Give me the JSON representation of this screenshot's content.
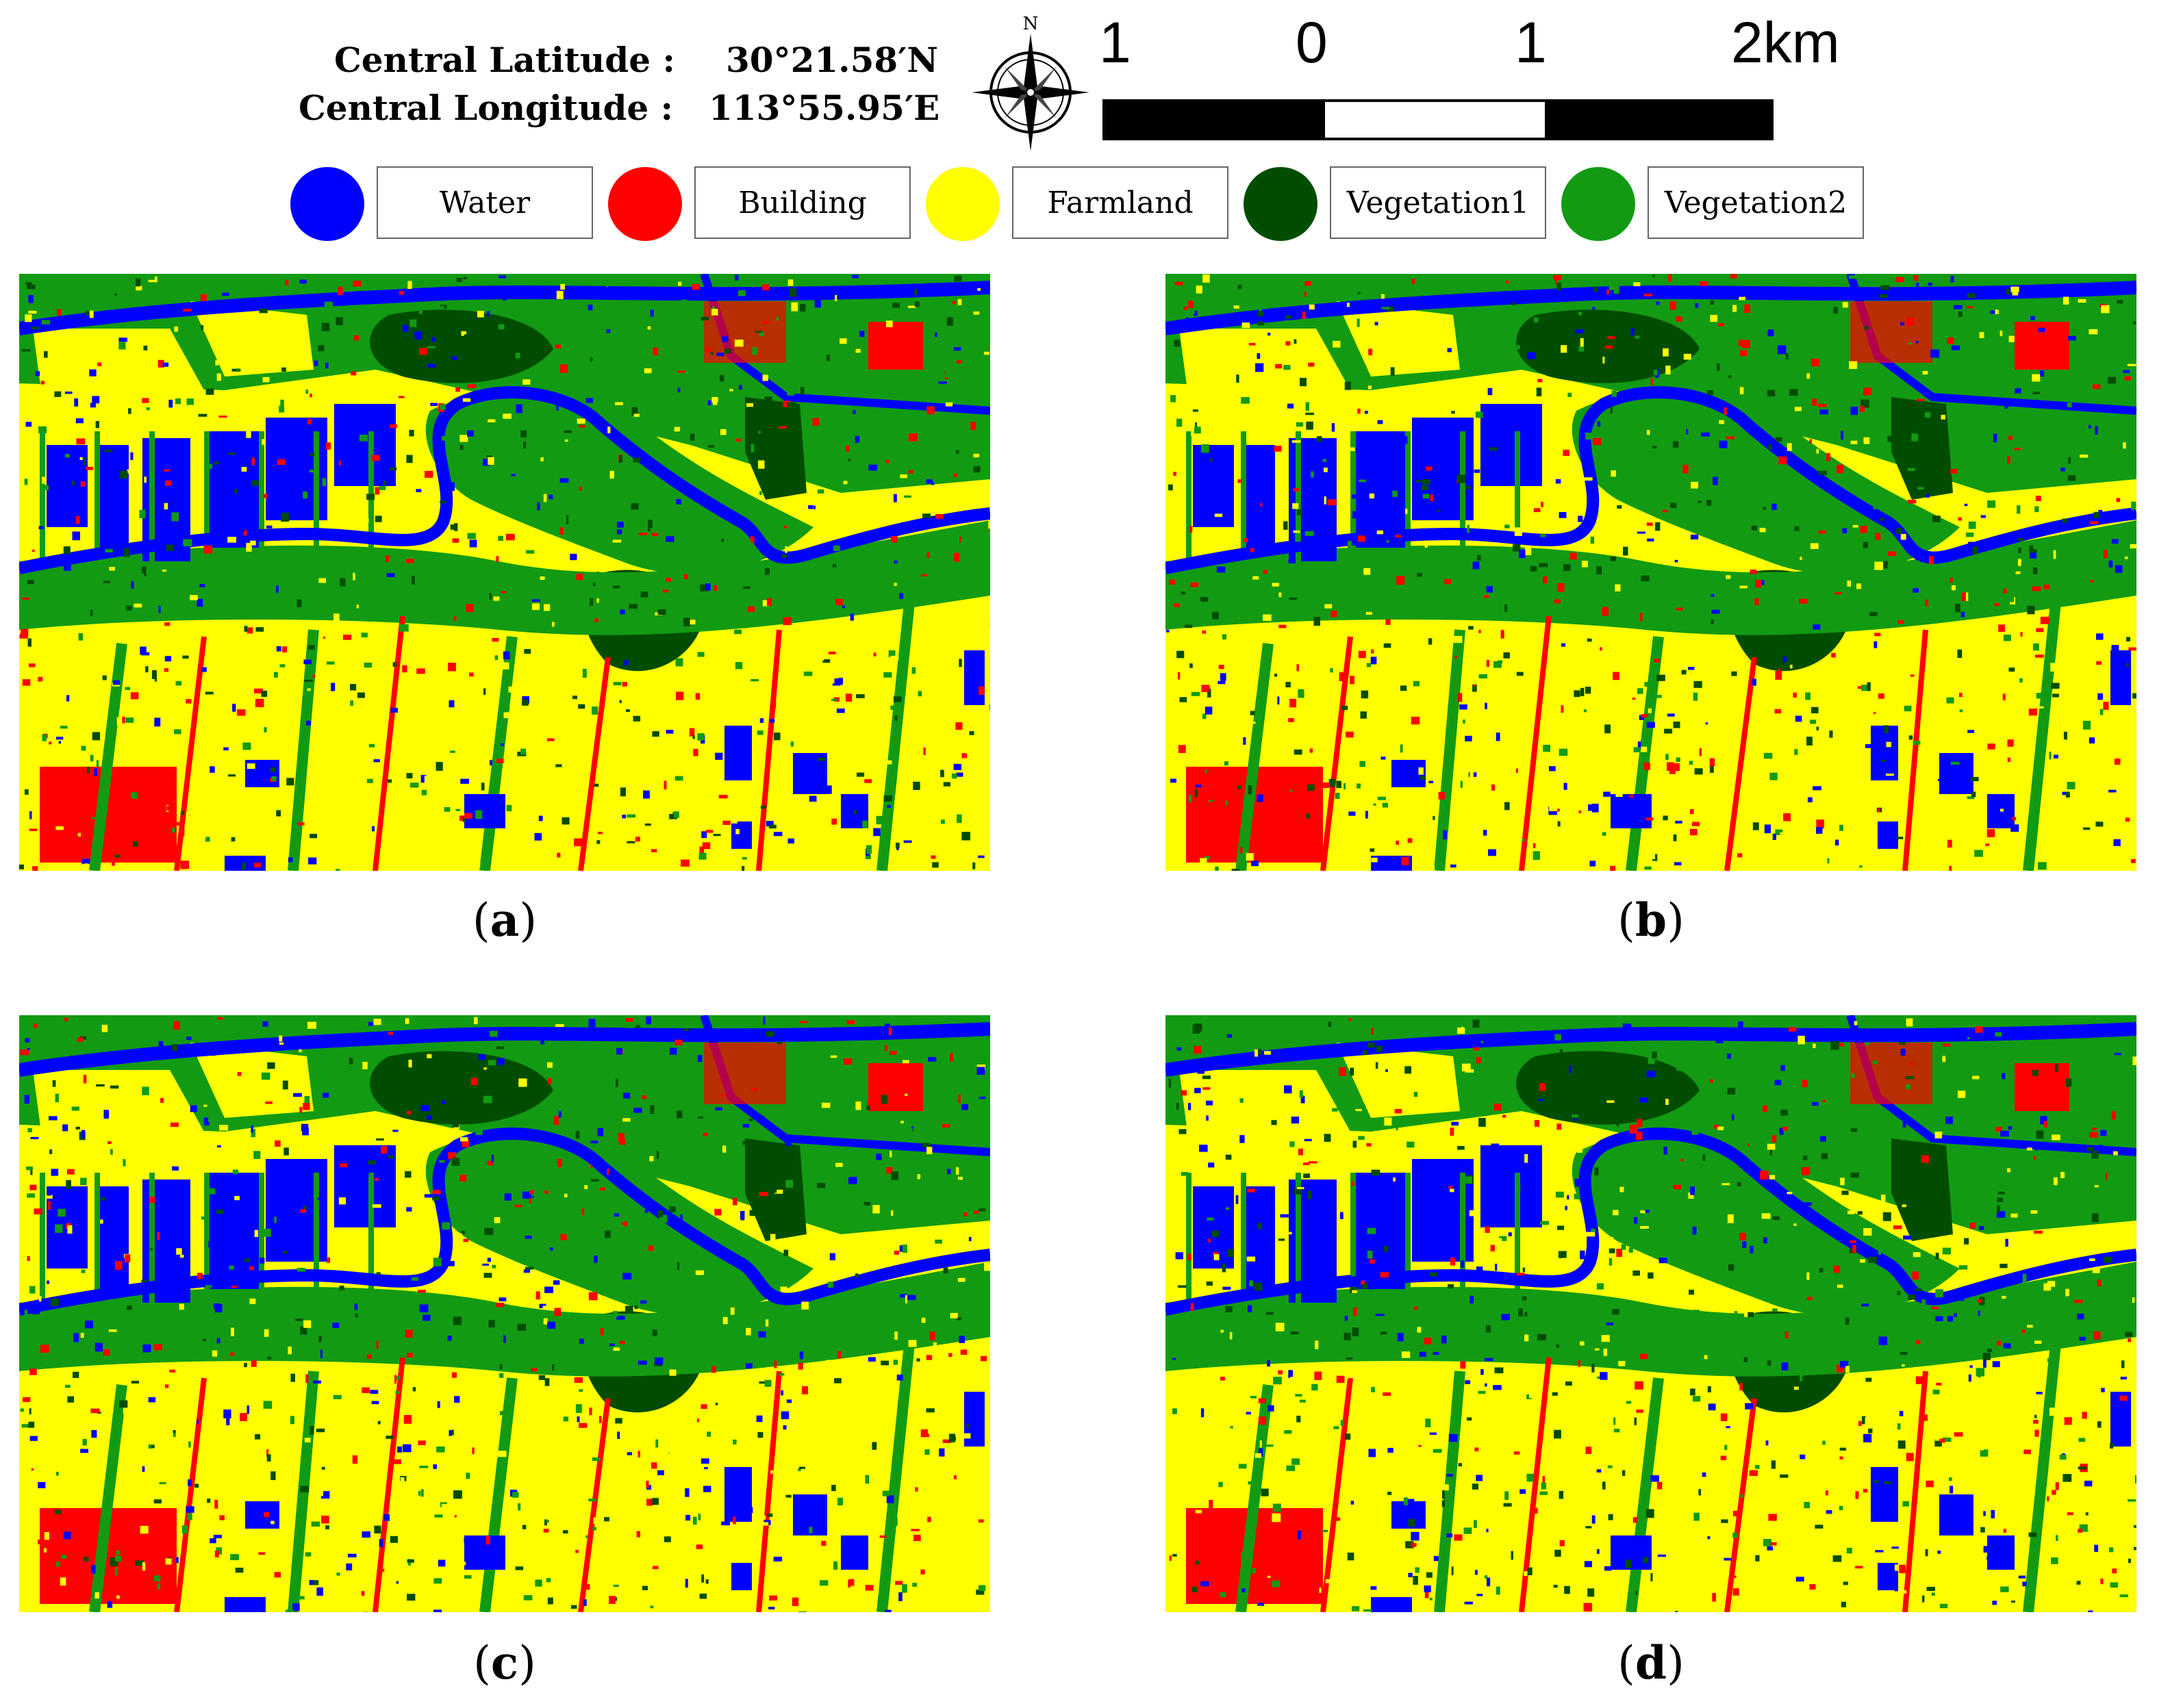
{
  "header": {
    "lat_label": "Central Latitude :",
    "lat_value": "30°21.58′N",
    "lon_label": "Central Longitude :",
    "lon_value": "113°55.95′E"
  },
  "compass": {
    "north_label": "N",
    "icon": "compass-rose-icon"
  },
  "scale": {
    "labels": [
      "1",
      "0",
      "1",
      "2km"
    ],
    "segments": [
      "#000000",
      "#ffffff",
      "#000000"
    ]
  },
  "legend": [
    {
      "label": "Water",
      "color": "#0000ff"
    },
    {
      "label": "Building",
      "color": "#ff0000"
    },
    {
      "label": "Farmland",
      "color": "#ffff00"
    },
    {
      "label": "Vegetation1",
      "color": "#004d00"
    },
    {
      "label": "Vegetation2",
      "color": "#129b12"
    }
  ],
  "panels": [
    {
      "id": "a",
      "letter": "a"
    },
    {
      "id": "b",
      "letter": "b"
    },
    {
      "id": "c",
      "letter": "c"
    },
    {
      "id": "d",
      "letter": "d"
    }
  ]
}
